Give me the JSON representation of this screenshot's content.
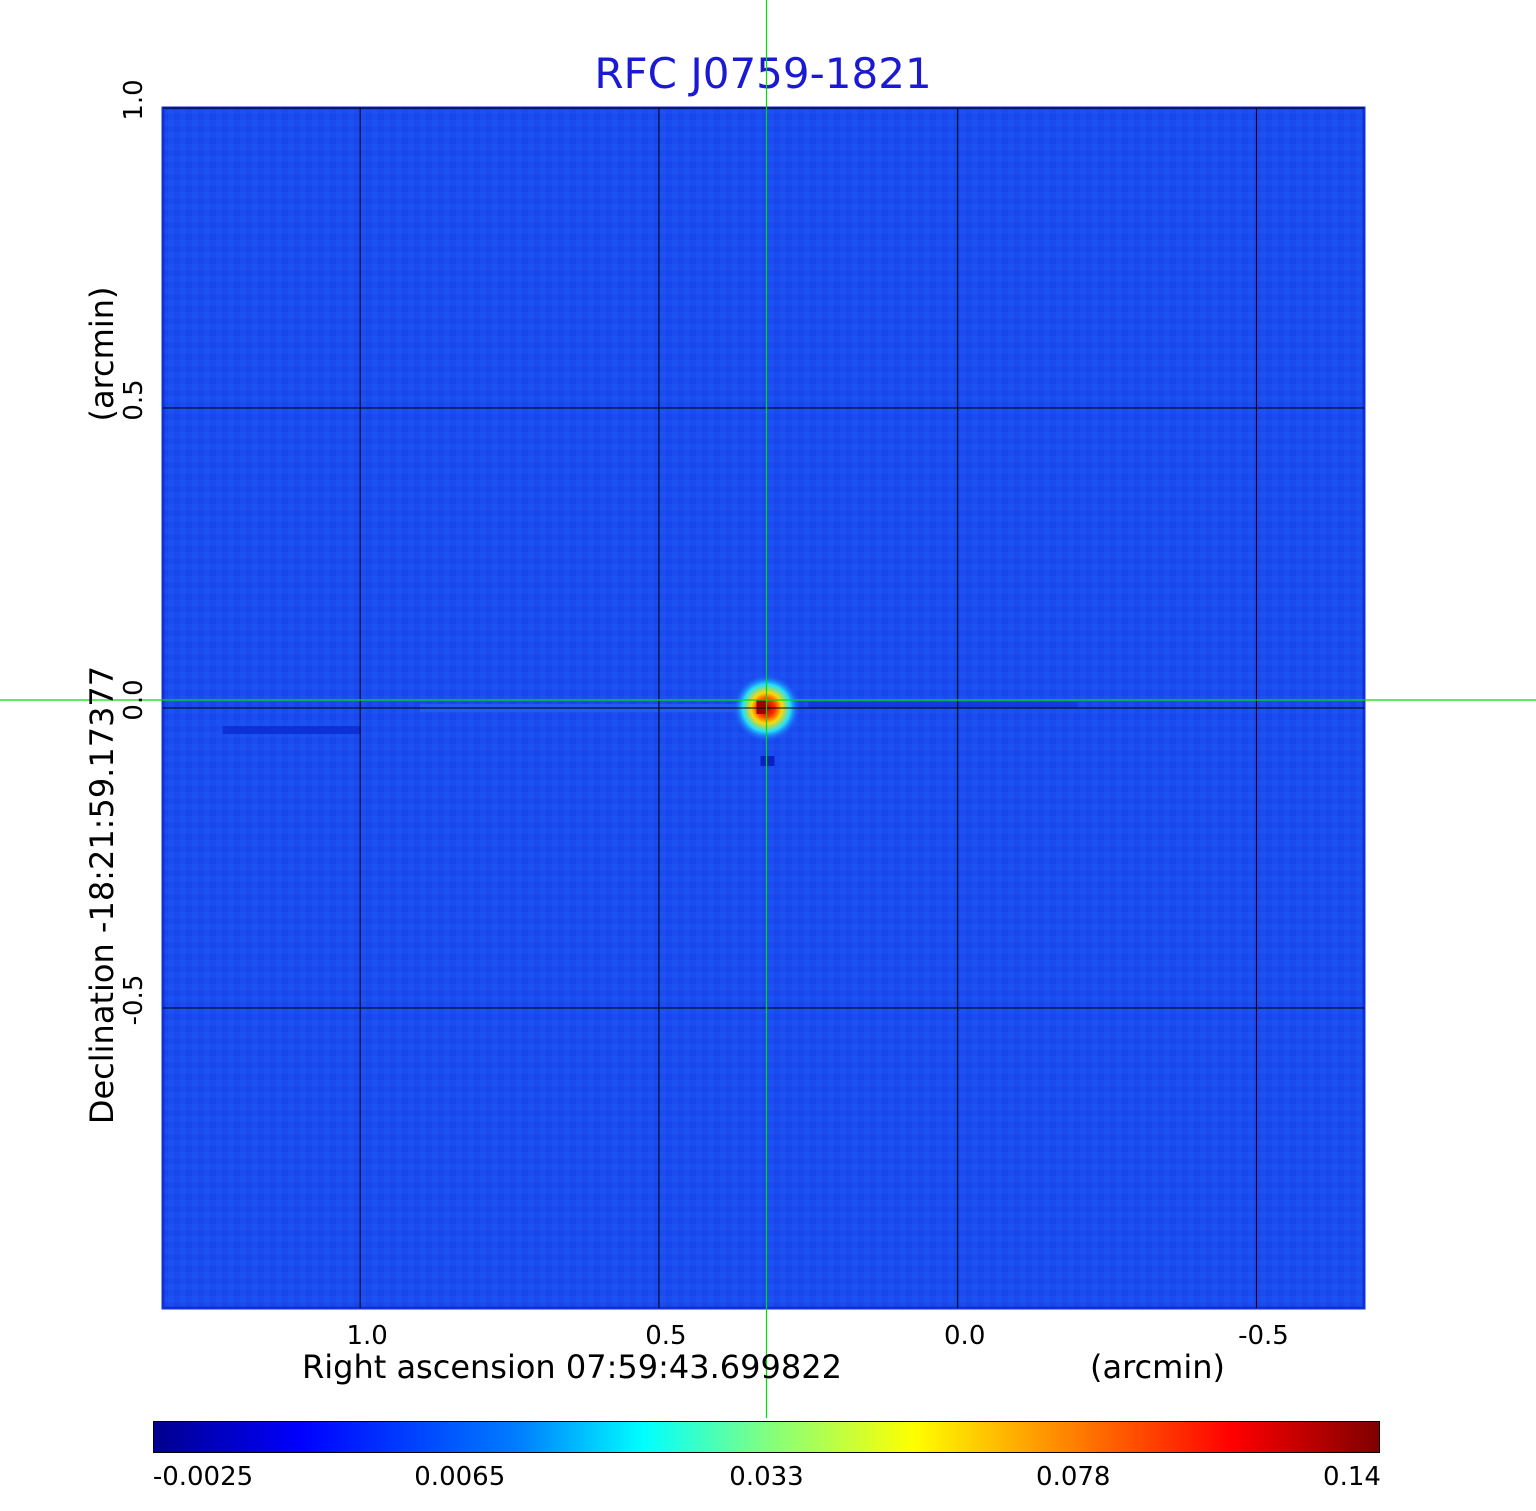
{
  "chart_data": {
    "type": "heatmap",
    "title": "RFC J0759-1821",
    "xlabel": "Right ascension  07:59:43.699822",
    "xunit": "(arcmin)",
    "ylabel": "Declination  -18:21:59.17377",
    "yunit": "(arcmin)",
    "x_ticks": [
      "1.0",
      "0.5",
      "0.0",
      "-0.5"
    ],
    "y_ticks": [
      "1.0",
      "0.5",
      "0.0",
      "-0.5"
    ],
    "x_range": [
      1.33,
      -0.68
    ],
    "y_range": [
      -1.0,
      1.0
    ],
    "grid": true,
    "crosshair": {
      "x": 0.32,
      "y": 0.0,
      "color": "#00e000"
    },
    "source_peak": {
      "x": 0.32,
      "y": 0.0,
      "value": 0.14
    },
    "colorbar": {
      "colormap": "jet",
      "tick_labels": [
        "-0.0025",
        "0.0065",
        "0.033",
        "0.078",
        "0.14"
      ],
      "min": -0.0025,
      "max": 0.14
    },
    "background_color": "#1a4cf0"
  }
}
